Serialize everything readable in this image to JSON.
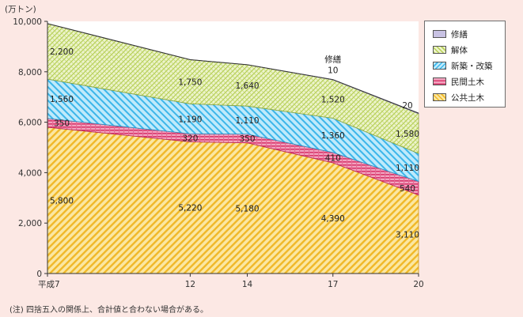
{
  "chart_data": {
    "type": "area",
    "stacked": true,
    "unit_label": "(万トン)",
    "x": [
      "平成7",
      "12",
      "14",
      "17",
      "20"
    ],
    "x_positions": [
      7,
      12,
      14,
      17,
      20
    ],
    "ylim": [
      0,
      10000
    ],
    "yticks": [
      "0",
      "2,000",
      "4,000",
      "6,000",
      "8,000",
      "10,000"
    ],
    "ytick_values": [
      0,
      2000,
      4000,
      6000,
      8000,
      10000
    ],
    "grid": false,
    "legend_position": "top-right",
    "series": [
      {
        "name": "公共土木",
        "key": "public",
        "values": [
          5800,
          5220,
          5180,
          4390,
          3110
        ],
        "labels": [
          "5,800",
          "5,220",
          "5,180",
          "4,390",
          "3,110"
        ],
        "color": "#f5c33a"
      },
      {
        "name": "民間土木",
        "key": "private",
        "values": [
          350,
          320,
          350,
          410,
          540
        ],
        "labels": [
          "350",
          "320",
          "350",
          "410",
          "540"
        ],
        "color": "#e04a7c"
      },
      {
        "name": "新築・改築",
        "key": "new",
        "values": [
          1560,
          1190,
          1110,
          1360,
          1110
        ],
        "labels": [
          "1,560",
          "1,190",
          "1,110",
          "1,360",
          "1,110"
        ],
        "color": "#49c1ef"
      },
      {
        "name": "解体",
        "key": "demolition",
        "values": [
          2200,
          1750,
          1640,
          1520,
          1580
        ],
        "labels": [
          "2,200",
          "1,750",
          "1,640",
          "1,520",
          "1,580"
        ],
        "color": "#cfe080"
      },
      {
        "name": "修繕",
        "key": "repair",
        "values": [
          0,
          0,
          0,
          10,
          20
        ],
        "labels": [
          "",
          "",
          "",
          "10",
          "20"
        ],
        "color": "#b2a9d4"
      }
    ],
    "annotations": [
      {
        "text": "修繕",
        "x": 17
      },
      {
        "text": "10",
        "x": 17
      },
      {
        "text": "20",
        "x": 20
      }
    ]
  },
  "legend": {
    "items": [
      {
        "label": "修繕",
        "color": "#b2a9d4",
        "pattern": "pat-repair"
      },
      {
        "label": "解体",
        "color": "#cfe080",
        "pattern": "pat-demo"
      },
      {
        "label": "新築・改築",
        "color": "#49c1ef",
        "pattern": "pat-new"
      },
      {
        "label": "民間土木",
        "color": "#e04a7c",
        "pattern": "pat-private"
      },
      {
        "label": "公共土木",
        "color": "#f5c33a",
        "pattern": "pat-public"
      }
    ]
  },
  "footnote": "(注) 四捨五入の関係上、合計値と合わない場合がある。"
}
